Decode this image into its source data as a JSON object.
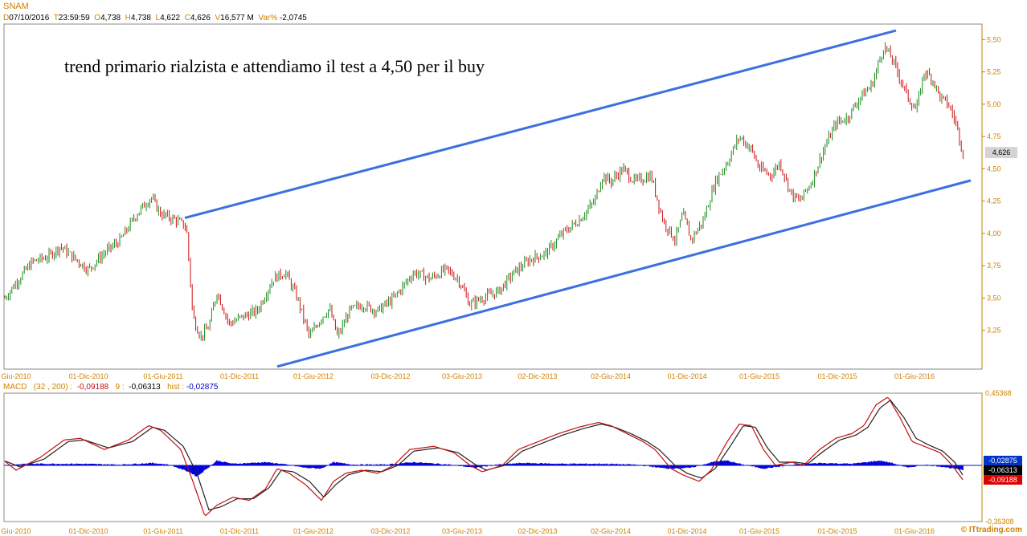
{
  "header": {
    "symbol": "SNAM",
    "d_label": "D",
    "date": "07/10/2016",
    "t_label": "T",
    "time": "23:59:59",
    "o_label": "O",
    "open": "4,738",
    "h_label": "H",
    "high": "4,738",
    "l_label": "L",
    "low": "4,622",
    "c_label": "C",
    "close": "4,626",
    "v_label": "V",
    "volume": "16,577 M",
    "var_label": "Var%",
    "var": "-2,0745"
  },
  "annotation": "trend primario rialzista e attendiamo il test a 4,50 per il buy",
  "price_badge": "4,626",
  "macd_header": {
    "name": "MACD",
    "params": "(32 , 200) :",
    "macd_value": "-0,09188",
    "signal_label": "9 :",
    "signal_value": "-0,06313",
    "hist_label": "hist :",
    "hist_value": "-0,02875"
  },
  "macd_badges": [
    "-0,02875",
    "-0,06313",
    "-0,09188"
  ],
  "watermark": "© ITtrading.com",
  "colors": {
    "bull": "#1a8a1a",
    "bear": "#cc1010",
    "channel": "#3d6fe0",
    "macd_line": "#c01010",
    "signal_line": "#222222",
    "hist": "#0000dd",
    "axis_text": "#d08000"
  },
  "chart_data": [
    {
      "type": "candlestick",
      "title": "SNAM",
      "ylim": [
        2.95,
        5.62
      ],
      "yticks": [
        "3,25",
        "3,50",
        "3,75",
        "4,00",
        "4,25",
        "4,50",
        "4,75",
        "5,00",
        "5,25",
        "5,50"
      ],
      "ytick_values": [
        3.25,
        3.5,
        3.75,
        4.0,
        4.25,
        4.5,
        4.75,
        5.0,
        5.25,
        5.5
      ],
      "xticks": [
        "Giu-2010",
        "01-Dic-2010",
        "01-Giu-2011",
        "01-Dic-2011",
        "01-Giu-2012",
        "03-Dic-2012",
        "03-Giu-2013",
        "02-Dic-2013",
        "02-Giu-2014",
        "01-Dic-2014",
        "01-Giu-2015",
        "01-Dic-2015",
        "01-Giu-2016"
      ],
      "price_path": [
        [
          0,
          3.45
        ],
        [
          20,
          3.62
        ],
        [
          40,
          3.78
        ],
        [
          60,
          3.82
        ],
        [
          75,
          3.9
        ],
        [
          90,
          3.82
        ],
        [
          110,
          3.72
        ],
        [
          130,
          3.85
        ],
        [
          150,
          3.95
        ],
        [
          170,
          4.15
        ],
        [
          188,
          4.28
        ],
        [
          200,
          4.15
        ],
        [
          220,
          4.1
        ],
        [
          232,
          4.05
        ],
        [
          240,
          3.35
        ],
        [
          250,
          3.2
        ],
        [
          260,
          3.28
        ],
        [
          270,
          3.55
        ],
        [
          285,
          3.3
        ],
        [
          300,
          3.35
        ],
        [
          320,
          3.4
        ],
        [
          340,
          3.65
        ],
        [
          355,
          3.7
        ],
        [
          370,
          3.5
        ],
        [
          385,
          3.2
        ],
        [
          400,
          3.35
        ],
        [
          410,
          3.42
        ],
        [
          420,
          3.2
        ],
        [
          435,
          3.4
        ],
        [
          450,
          3.45
        ],
        [
          470,
          3.4
        ],
        [
          490,
          3.5
        ],
        [
          515,
          3.7
        ],
        [
          535,
          3.65
        ],
        [
          555,
          3.72
        ],
        [
          570,
          3.65
        ],
        [
          585,
          3.45
        ],
        [
          600,
          3.5
        ],
        [
          620,
          3.55
        ],
        [
          640,
          3.7
        ],
        [
          660,
          3.8
        ],
        [
          680,
          3.85
        ],
        [
          700,
          4.0
        ],
        [
          720,
          4.1
        ],
        [
          740,
          4.25
        ],
        [
          750,
          4.45
        ],
        [
          760,
          4.4
        ],
        [
          775,
          4.5
        ],
        [
          790,
          4.4
        ],
        [
          810,
          4.45
        ],
        [
          825,
          4.1
        ],
        [
          840,
          3.95
        ],
        [
          850,
          4.15
        ],
        [
          860,
          3.95
        ],
        [
          875,
          4.1
        ],
        [
          890,
          4.4
        ],
        [
          905,
          4.55
        ],
        [
          920,
          4.75
        ],
        [
          935,
          4.65
        ],
        [
          945,
          4.5
        ],
        [
          960,
          4.45
        ],
        [
          970,
          4.55
        ],
        [
          985,
          4.3
        ],
        [
          995,
          4.25
        ],
        [
          1010,
          4.4
        ],
        [
          1025,
          4.65
        ],
        [
          1040,
          4.85
        ],
        [
          1055,
          4.9
        ],
        [
          1070,
          5.05
        ],
        [
          1085,
          5.15
        ],
        [
          1100,
          5.45
        ],
        [
          1110,
          5.35
        ],
        [
          1120,
          5.2
        ],
        [
          1130,
          5.05
        ],
        [
          1140,
          4.95
        ],
        [
          1150,
          5.25
        ],
        [
          1160,
          5.2
        ],
        [
          1170,
          5.05
        ],
        [
          1180,
          5.0
        ],
        [
          1190,
          4.85
        ],
        [
          1198,
          4.63
        ]
      ],
      "channel": {
        "upper": [
          [
            230,
            4.12
          ],
          [
            1115,
            5.57
          ]
        ],
        "lower": [
          [
            345,
            2.97
          ],
          [
            1208,
            4.41
          ]
        ]
      },
      "last_price": 4.626
    },
    {
      "type": "macd",
      "title": "MACD (32 , 200)",
      "ylim": [
        -0.353,
        0.454
      ],
      "yticks": [
        "0,45368",
        "-0,35308"
      ],
      "ytick_values": [
        0.45368,
        -0.35308
      ],
      "xticks": [
        "Giu-2010",
        "01-Dic-2010",
        "01-Giu-2011",
        "01-Dic-2011",
        "01-Giu-2012",
        "03-Dic-2012",
        "03-Giu-2013",
        "02-Dic-2013",
        "02-Giu-2014",
        "01-Dic-2014",
        "01-Giu-2015",
        "01-Dic-2015",
        "01-Giu-2016"
      ],
      "macd_path": [
        [
          0,
          0.05
        ],
        [
          20,
          -0.03
        ],
        [
          50,
          0.05
        ],
        [
          80,
          0.16
        ],
        [
          100,
          0.17
        ],
        [
          130,
          0.1
        ],
        [
          160,
          0.16
        ],
        [
          185,
          0.25
        ],
        [
          200,
          0.22
        ],
        [
          225,
          0.1
        ],
        [
          240,
          -0.1
        ],
        [
          255,
          -0.32
        ],
        [
          270,
          -0.25
        ],
        [
          290,
          -0.2
        ],
        [
          310,
          -0.22
        ],
        [
          330,
          -0.15
        ],
        [
          345,
          -0.02
        ],
        [
          360,
          -0.05
        ],
        [
          380,
          -0.12
        ],
        [
          400,
          -0.22
        ],
        [
          415,
          -0.1
        ],
        [
          430,
          -0.05
        ],
        [
          450,
          -0.03
        ],
        [
          470,
          -0.05
        ],
        [
          490,
          0.0
        ],
        [
          510,
          0.1
        ],
        [
          540,
          0.12
        ],
        [
          565,
          0.08
        ],
        [
          585,
          0.0
        ],
        [
          600,
          -0.04
        ],
        [
          625,
          0.0
        ],
        [
          645,
          0.1
        ],
        [
          670,
          0.15
        ],
        [
          695,
          0.2
        ],
        [
          720,
          0.24
        ],
        [
          745,
          0.27
        ],
        [
          760,
          0.25
        ],
        [
          780,
          0.2
        ],
        [
          800,
          0.15
        ],
        [
          815,
          0.1
        ],
        [
          835,
          -0.02
        ],
        [
          850,
          -0.06
        ],
        [
          870,
          -0.1
        ],
        [
          885,
          -0.03
        ],
        [
          905,
          0.15
        ],
        [
          920,
          0.26
        ],
        [
          935,
          0.25
        ],
        [
          950,
          0.1
        ],
        [
          965,
          0.0
        ],
        [
          985,
          0.02
        ],
        [
          1000,
          0.0
        ],
        [
          1020,
          0.1
        ],
        [
          1040,
          0.17
        ],
        [
          1060,
          0.2
        ],
        [
          1075,
          0.25
        ],
        [
          1090,
          0.38
        ],
        [
          1105,
          0.43
        ],
        [
          1120,
          0.3
        ],
        [
          1135,
          0.15
        ],
        [
          1150,
          0.12
        ],
        [
          1170,
          0.08
        ],
        [
          1185,
          0.0
        ],
        [
          1198,
          -0.09
        ]
      ],
      "signal_path": [
        [
          0,
          0.04
        ],
        [
          25,
          -0.01
        ],
        [
          55,
          0.04
        ],
        [
          85,
          0.15
        ],
        [
          105,
          0.16
        ],
        [
          135,
          0.11
        ],
        [
          165,
          0.15
        ],
        [
          190,
          0.24
        ],
        [
          205,
          0.22
        ],
        [
          228,
          0.12
        ],
        [
          245,
          -0.05
        ],
        [
          260,
          -0.28
        ],
        [
          275,
          -0.26
        ],
        [
          295,
          -0.21
        ],
        [
          315,
          -0.21
        ],
        [
          335,
          -0.14
        ],
        [
          350,
          -0.03
        ],
        [
          365,
          -0.04
        ],
        [
          385,
          -0.1
        ],
        [
          403,
          -0.2
        ],
        [
          418,
          -0.12
        ],
        [
          433,
          -0.06
        ],
        [
          455,
          -0.03
        ],
        [
          475,
          -0.04
        ],
        [
          495,
          0.0
        ],
        [
          515,
          0.09
        ],
        [
          545,
          0.11
        ],
        [
          570,
          0.08
        ],
        [
          590,
          0.01
        ],
        [
          605,
          -0.03
        ],
        [
          628,
          0.0
        ],
        [
          650,
          0.09
        ],
        [
          675,
          0.14
        ],
        [
          700,
          0.19
        ],
        [
          725,
          0.23
        ],
        [
          748,
          0.26
        ],
        [
          765,
          0.24
        ],
        [
          785,
          0.2
        ],
        [
          805,
          0.15
        ],
        [
          820,
          0.1
        ],
        [
          840,
          0.0
        ],
        [
          855,
          -0.05
        ],
        [
          873,
          -0.08
        ],
        [
          890,
          -0.02
        ],
        [
          910,
          0.13
        ],
        [
          925,
          0.25
        ],
        [
          940,
          0.24
        ],
        [
          955,
          0.11
        ],
        [
          970,
          0.02
        ],
        [
          990,
          0.02
        ],
        [
          1005,
          0.01
        ],
        [
          1025,
          0.09
        ],
        [
          1045,
          0.16
        ],
        [
          1065,
          0.19
        ],
        [
          1080,
          0.24
        ],
        [
          1095,
          0.36
        ],
        [
          1108,
          0.41
        ],
        [
          1125,
          0.3
        ],
        [
          1140,
          0.17
        ],
        [
          1155,
          0.13
        ],
        [
          1173,
          0.09
        ],
        [
          1188,
          0.02
        ],
        [
          1198,
          -0.06
        ]
      ],
      "hist_path": [
        [
          0,
          -0.005
        ],
        [
          30,
          0.01
        ],
        [
          60,
          0.01
        ],
        [
          100,
          0.01
        ],
        [
          150,
          0.005
        ],
        [
          190,
          0.015
        ],
        [
          210,
          0.005
        ],
        [
          235,
          -0.04
        ],
        [
          245,
          -0.07
        ],
        [
          255,
          -0.03
        ],
        [
          270,
          0.03
        ],
        [
          290,
          0.01
        ],
        [
          330,
          0.02
        ],
        [
          350,
          0.01
        ],
        [
          380,
          -0.015
        ],
        [
          400,
          -0.02
        ],
        [
          415,
          0.02
        ],
        [
          440,
          0.005
        ],
        [
          480,
          0.005
        ],
        [
          515,
          0.02
        ],
        [
          560,
          0.005
        ],
        [
          590,
          -0.015
        ],
        [
          620,
          0.005
        ],
        [
          650,
          0.015
        ],
        [
          700,
          0.01
        ],
        [
          750,
          0.01
        ],
        [
          790,
          0.005
        ],
        [
          830,
          -0.02
        ],
        [
          860,
          -0.015
        ],
        [
          890,
          0.025
        ],
        [
          905,
          0.03
        ],
        [
          920,
          0.01
        ],
        [
          950,
          -0.02
        ],
        [
          990,
          0.005
        ],
        [
          1020,
          0.015
        ],
        [
          1060,
          0.01
        ],
        [
          1095,
          0.03
        ],
        [
          1110,
          0.015
        ],
        [
          1130,
          -0.015
        ],
        [
          1150,
          0.005
        ],
        [
          1175,
          -0.01
        ],
        [
          1198,
          -0.03
        ]
      ],
      "last_values": {
        "macd": -0.09188,
        "signal": -0.06313,
        "hist": -0.02875
      }
    }
  ]
}
